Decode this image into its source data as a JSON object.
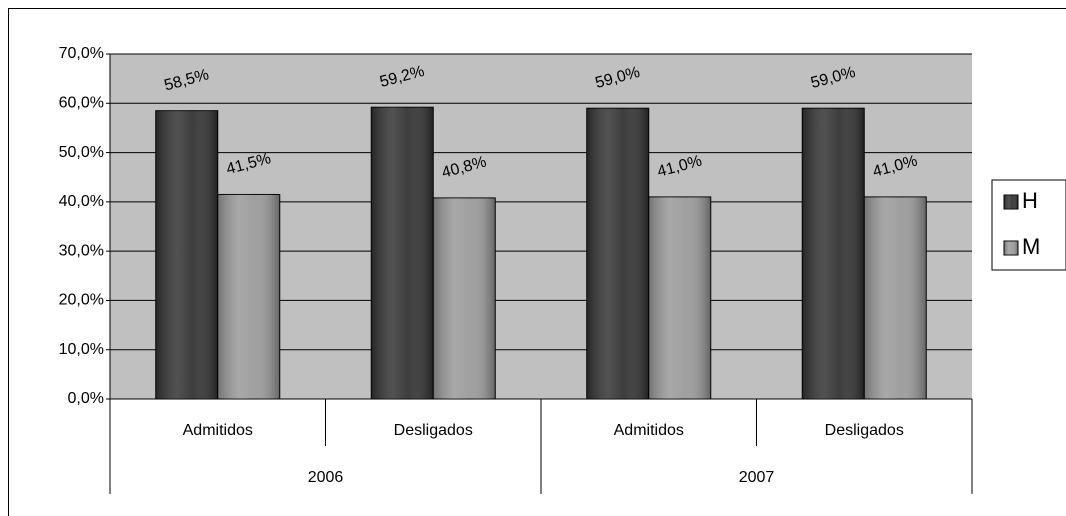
{
  "chart_data": {
    "type": "bar",
    "groups": [
      {
        "name": "2006",
        "categories": [
          "Admitidos",
          "Desligados"
        ]
      },
      {
        "name": "2007",
        "categories": [
          "Admitidos",
          "Desligados"
        ]
      }
    ],
    "series": [
      {
        "name": "H",
        "color": "#333333",
        "values": [
          58.5,
          59.2,
          59.0,
          59.0
        ],
        "value_labels": [
          "58,5%",
          "59,2%",
          "59,0%",
          "59,0%"
        ]
      },
      {
        "name": "M",
        "color": "#9a9a9a",
        "values": [
          41.5,
          40.8,
          41.0,
          41.0
        ],
        "value_labels": [
          "41,5%",
          "40,8%",
          "41,0%",
          "41,0%"
        ]
      }
    ],
    "ylim": [
      0,
      70
    ],
    "yticks": [
      {
        "value": 0,
        "label": "0,0%"
      },
      {
        "value": 10,
        "label": "10,0%"
      },
      {
        "value": 20,
        "label": "20,0%"
      },
      {
        "value": 30,
        "label": "30,0%"
      },
      {
        "value": 40,
        "label": "40,0%"
      },
      {
        "value": 50,
        "label": "50,0%"
      },
      {
        "value": 60,
        "label": "60,0%"
      },
      {
        "value": 70,
        "label": "70,0%"
      }
    ],
    "grid": true,
    "plot_background": "#c0c0c0",
    "legend": "right"
  }
}
